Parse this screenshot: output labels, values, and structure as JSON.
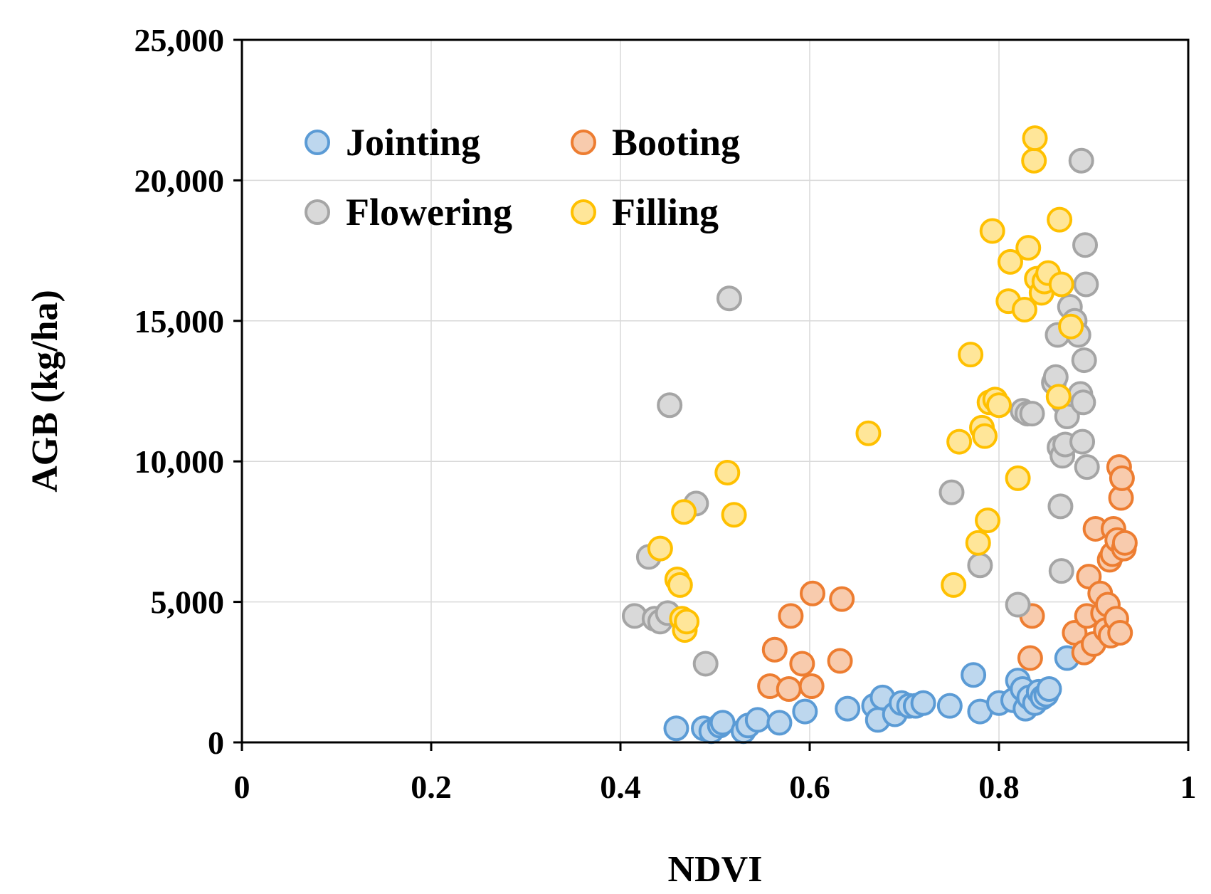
{
  "chart_data": {
    "type": "scatter",
    "title": "",
    "xlabel": "NDVI",
    "ylabel": "AGB (kg/ha)",
    "xlim": [
      0,
      1
    ],
    "ylim": [
      0,
      25000
    ],
    "grid": true,
    "legend_position": "top-left",
    "x_ticks": [
      {
        "value": 0,
        "label": "0"
      },
      {
        "value": 0.2,
        "label": "0.2"
      },
      {
        "value": 0.4,
        "label": "0.4"
      },
      {
        "value": 0.6,
        "label": "0.6"
      },
      {
        "value": 0.8,
        "label": "0.8"
      },
      {
        "value": 1,
        "label": "1"
      }
    ],
    "y_ticks": [
      {
        "value": 0,
        "label": "0"
      },
      {
        "value": 5000,
        "label": "5,000"
      },
      {
        "value": 10000,
        "label": "10,000"
      },
      {
        "value": 15000,
        "label": "15,000"
      },
      {
        "value": 20000,
        "label": "20,000"
      },
      {
        "value": 25000,
        "label": "25,000"
      }
    ],
    "series": [
      {
        "name": "Jointing",
        "fill": "#bdd7ee",
        "stroke": "#5b9bd5",
        "points": [
          [
            0.459,
            500
          ],
          [
            0.488,
            500
          ],
          [
            0.496,
            400
          ],
          [
            0.505,
            600
          ],
          [
            0.508,
            700
          ],
          [
            0.53,
            400
          ],
          [
            0.535,
            600
          ],
          [
            0.545,
            800
          ],
          [
            0.568,
            700
          ],
          [
            0.595,
            1100
          ],
          [
            0.64,
            1200
          ],
          [
            0.668,
            1300
          ],
          [
            0.672,
            800
          ],
          [
            0.677,
            1600
          ],
          [
            0.69,
            1000
          ],
          [
            0.697,
            1400
          ],
          [
            0.705,
            1300
          ],
          [
            0.712,
            1300
          ],
          [
            0.72,
            1400
          ],
          [
            0.748,
            1300
          ],
          [
            0.773,
            2400
          ],
          [
            0.78,
            1100
          ],
          [
            0.8,
            1400
          ],
          [
            0.815,
            1500
          ],
          [
            0.82,
            2200
          ],
          [
            0.825,
            1900
          ],
          [
            0.828,
            1200
          ],
          [
            0.832,
            1600
          ],
          [
            0.838,
            1400
          ],
          [
            0.842,
            1800
          ],
          [
            0.846,
            1600
          ],
          [
            0.85,
            1700
          ],
          [
            0.853,
            1900
          ],
          [
            0.872,
            3000
          ]
        ]
      },
      {
        "name": "Booting",
        "fill": "#f8cbad",
        "stroke": "#ed7d31",
        "points": [
          [
            0.558,
            2000
          ],
          [
            0.563,
            3300
          ],
          [
            0.578,
            1900
          ],
          [
            0.58,
            4500
          ],
          [
            0.592,
            2800
          ],
          [
            0.602,
            2000
          ],
          [
            0.603,
            5300
          ],
          [
            0.632,
            2900
          ],
          [
            0.634,
            5100
          ],
          [
            0.833,
            3000
          ],
          [
            0.835,
            4500
          ],
          [
            0.88,
            3900
          ],
          [
            0.89,
            3200
          ],
          [
            0.893,
            4500
          ],
          [
            0.895,
            5900
          ],
          [
            0.9,
            3500
          ],
          [
            0.902,
            7600
          ],
          [
            0.907,
            5300
          ],
          [
            0.91,
            4600
          ],
          [
            0.913,
            4000
          ],
          [
            0.915,
            4900
          ],
          [
            0.917,
            6500
          ],
          [
            0.918,
            3800
          ],
          [
            0.92,
            6700
          ],
          [
            0.921,
            7600
          ],
          [
            0.924,
            4400
          ],
          [
            0.925,
            7200
          ],
          [
            0.927,
            9800
          ],
          [
            0.928,
            3900
          ],
          [
            0.929,
            8700
          ],
          [
            0.93,
            9400
          ],
          [
            0.932,
            6900
          ],
          [
            0.933,
            7100
          ]
        ]
      },
      {
        "name": "Flowering",
        "fill": "#d9d9d9",
        "stroke": "#a5a5a5",
        "points": [
          [
            0.415,
            4500
          ],
          [
            0.43,
            6600
          ],
          [
            0.436,
            4400
          ],
          [
            0.442,
            4300
          ],
          [
            0.45,
            4600
          ],
          [
            0.452,
            12000
          ],
          [
            0.48,
            8500
          ],
          [
            0.49,
            2800
          ],
          [
            0.515,
            15800
          ],
          [
            0.75,
            8900
          ],
          [
            0.78,
            6300
          ],
          [
            0.82,
            4900
          ],
          [
            0.825,
            11800
          ],
          [
            0.83,
            11700
          ],
          [
            0.835,
            11700
          ],
          [
            0.858,
            12800
          ],
          [
            0.86,
            13000
          ],
          [
            0.862,
            14500
          ],
          [
            0.864,
            10500
          ],
          [
            0.865,
            8400
          ],
          [
            0.866,
            6100
          ],
          [
            0.867,
            10200
          ],
          [
            0.868,
            12100
          ],
          [
            0.87,
            10600
          ],
          [
            0.872,
            11600
          ],
          [
            0.875,
            15500
          ],
          [
            0.88,
            15000
          ],
          [
            0.884,
            14500
          ],
          [
            0.886,
            12400
          ],
          [
            0.887,
            20700
          ],
          [
            0.888,
            10700
          ],
          [
            0.889,
            12100
          ],
          [
            0.89,
            13600
          ],
          [
            0.891,
            17700
          ],
          [
            0.892,
            16300
          ],
          [
            0.893,
            9800
          ]
        ]
      },
      {
        "name": "Filling",
        "fill": "#ffe699",
        "stroke": "#ffc000",
        "points": [
          [
            0.442,
            6900
          ],
          [
            0.46,
            5800
          ],
          [
            0.463,
            5600
          ],
          [
            0.465,
            4400
          ],
          [
            0.467,
            8200
          ],
          [
            0.468,
            4000
          ],
          [
            0.47,
            4300
          ],
          [
            0.513,
            9600
          ],
          [
            0.52,
            8100
          ],
          [
            0.662,
            11000
          ],
          [
            0.752,
            5600
          ],
          [
            0.758,
            10700
          ],
          [
            0.77,
            13800
          ],
          [
            0.778,
            7100
          ],
          [
            0.782,
            11200
          ],
          [
            0.785,
            10900
          ],
          [
            0.788,
            7900
          ],
          [
            0.79,
            12100
          ],
          [
            0.793,
            18200
          ],
          [
            0.796,
            12200
          ],
          [
            0.8,
            12000
          ],
          [
            0.81,
            15700
          ],
          [
            0.812,
            17100
          ],
          [
            0.82,
            9400
          ],
          [
            0.827,
            15400
          ],
          [
            0.831,
            17600
          ],
          [
            0.837,
            20700
          ],
          [
            0.838,
            21500
          ],
          [
            0.84,
            16500
          ],
          [
            0.845,
            16000
          ],
          [
            0.848,
            16400
          ],
          [
            0.852,
            16700
          ],
          [
            0.863,
            12300
          ],
          [
            0.864,
            18600
          ],
          [
            0.866,
            16300
          ],
          [
            0.876,
            14800
          ]
        ]
      }
    ]
  }
}
